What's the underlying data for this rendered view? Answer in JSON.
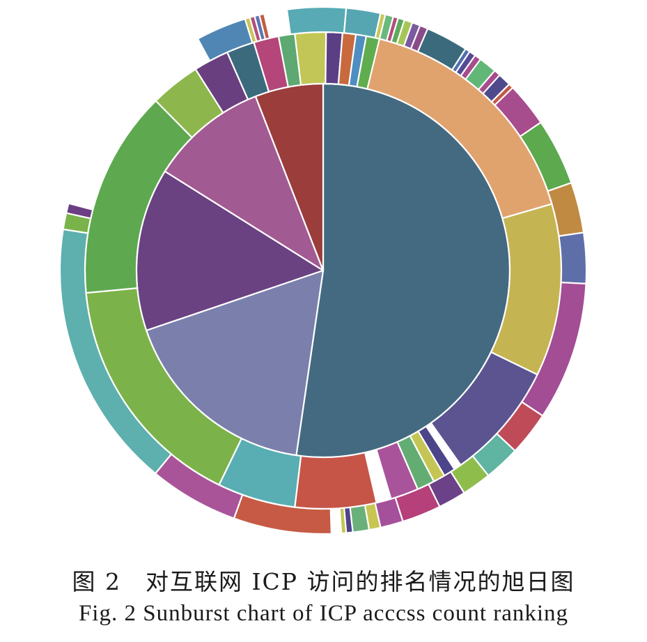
{
  "caption": {
    "chinese": "图 2　对互联网 ICP 访问的排名情况的旭日图",
    "english": "Fig. 2  Sunburst chart of ICP acccss count ranking"
  },
  "chart_data": {
    "type": "sunburst",
    "title": "",
    "unit": "fraction of full circle",
    "rings": [
      {
        "level": 1,
        "segments": [
          {
            "value": 0.523,
            "color": "#436a80"
          },
          {
            "value": 0.175,
            "color": "#7b7fac"
          },
          {
            "value": 0.141,
            "color": "#6a4181"
          },
          {
            "value": 0.102,
            "color": "#a25a93"
          },
          {
            "value": 0.059,
            "color": "#9a3d3b"
          }
        ]
      },
      {
        "level": 2,
        "segments": [
          {
            "value": 0.205,
            "color": "#e1a36e"
          },
          {
            "value": 0.117,
            "color": "#c5b452"
          },
          {
            "value": 0.08,
            "color": "#5b5490"
          },
          {
            "value": 0.005,
            "color": "#ffffff"
          },
          {
            "value": 0.008,
            "color": "#4c458a"
          },
          {
            "value": 0.008,
            "color": "#c5c555"
          },
          {
            "value": 0.012,
            "color": "#63ad72"
          },
          {
            "value": 0.019,
            "color": "#a9549a"
          },
          {
            "value": 0.01,
            "color": "#ffffff"
          },
          {
            "value": 0.055,
            "color": "#c65548"
          },
          {
            "value": 0.053,
            "color": "#58aeb2"
          },
          {
            "value": 0.163,
            "color": "#7cb24a"
          },
          {
            "value": 0.141,
            "color": "#5ea84f"
          },
          {
            "value": 0.034,
            "color": "#8db74c"
          },
          {
            "value": 0.024,
            "color": "#6a3f7f"
          },
          {
            "value": 0.019,
            "color": "#3b6a7d"
          },
          {
            "value": 0.017,
            "color": "#b4467a"
          },
          {
            "value": 0.011,
            "color": "#5ea872"
          },
          {
            "value": 0.021,
            "color": "#c2c656"
          },
          {
            "value": 0.011,
            "color": "#5a3f85"
          },
          {
            "value": 0.009,
            "color": "#c86a3d"
          },
          {
            "value": 0.007,
            "color": "#4f8ec0"
          },
          {
            "value": 0.009,
            "color": "#5fad4e"
          }
        ]
      },
      {
        "level": 3,
        "segments": [
          {
            "value": 0.086,
            "color": "#8a4c88"
          },
          {
            "value": 0.069,
            "color": "#a74c8c"
          },
          {
            "value": 0.041,
            "color": "#5da94e"
          },
          {
            "value": 0.031,
            "color": "#c08a42"
          },
          {
            "value": 0.031,
            "color": "#5d6ea8"
          },
          {
            "value": 0.085,
            "color": "#a34d95"
          },
          {
            "value": 0.027,
            "color": "#bf4a58"
          },
          {
            "value": 0.022,
            "color": "#5fb4a2"
          },
          {
            "value": 0.018,
            "color": "#8fbd4c"
          },
          {
            "value": 0.017,
            "color": "#6b4187"
          },
          {
            "value": 0.024,
            "color": "#b5407a"
          },
          {
            "value": 0.014,
            "color": "#a5509a"
          },
          {
            "value": 0.007,
            "color": "#c8c553"
          },
          {
            "value": 0.01,
            "color": "#6ab07a"
          },
          {
            "value": 0.004,
            "color": "#4f448c"
          },
          {
            "value": 0.003,
            "color": "#c3c752"
          },
          {
            "value": 0.006,
            "color": "#ffffff"
          },
          {
            "value": 0.06,
            "color": "#c65a44"
          },
          {
            "value": 0.055,
            "color": "#a95499"
          },
          {
            "value": 0.165,
            "color": "#5db0ae"
          },
          {
            "value": 0.01,
            "color": "#7ab34a"
          },
          {
            "value": 0.006,
            "color": "#6b3f84"
          },
          {
            "value": 0.13,
            "color": "#ffffff"
          },
          {
            "value": 0.031,
            "color": "#4f86b3"
          },
          {
            "value": 0.003,
            "color": "#c8c458"
          },
          {
            "value": 0.003,
            "color": "#b04f7d"
          },
          {
            "value": 0.003,
            "color": "#5d76b0"
          },
          {
            "value": 0.003,
            "color": "#c25b42"
          },
          {
            "value": 0.014,
            "color": "#ffffff"
          },
          {
            "value": 0.036,
            "color": "#58aab4"
          },
          {
            "value": 0.021,
            "color": "#56a6b2"
          },
          {
            "value": 0.003,
            "color": "#c6c758"
          },
          {
            "value": 0.005,
            "color": "#6bb87c"
          },
          {
            "value": 0.003,
            "color": "#b24d7f"
          },
          {
            "value": 0.004,
            "color": "#5fa95a"
          },
          {
            "value": 0.005,
            "color": "#a5c656"
          },
          {
            "value": 0.005,
            "color": "#7b5aa0"
          },
          {
            "value": 0.005,
            "color": "#ffffff"
          },
          {
            "value": 0.026,
            "color": "#3b6a7c"
          },
          {
            "value": 0.003,
            "color": "#4f6fb0"
          },
          {
            "value": 0.004,
            "color": "#554a94"
          },
          {
            "value": 0.004,
            "color": "#ffffff"
          },
          {
            "value": 0.011,
            "color": "#62b676"
          },
          {
            "value": 0.004,
            "color": "#ffffff"
          },
          {
            "value": 0.008,
            "color": "#4e4a8c"
          },
          {
            "value": 0.003,
            "color": "#c25a44"
          },
          {
            "value": 0.003,
            "color": "#ffffff"
          }
        ]
      }
    ]
  }
}
